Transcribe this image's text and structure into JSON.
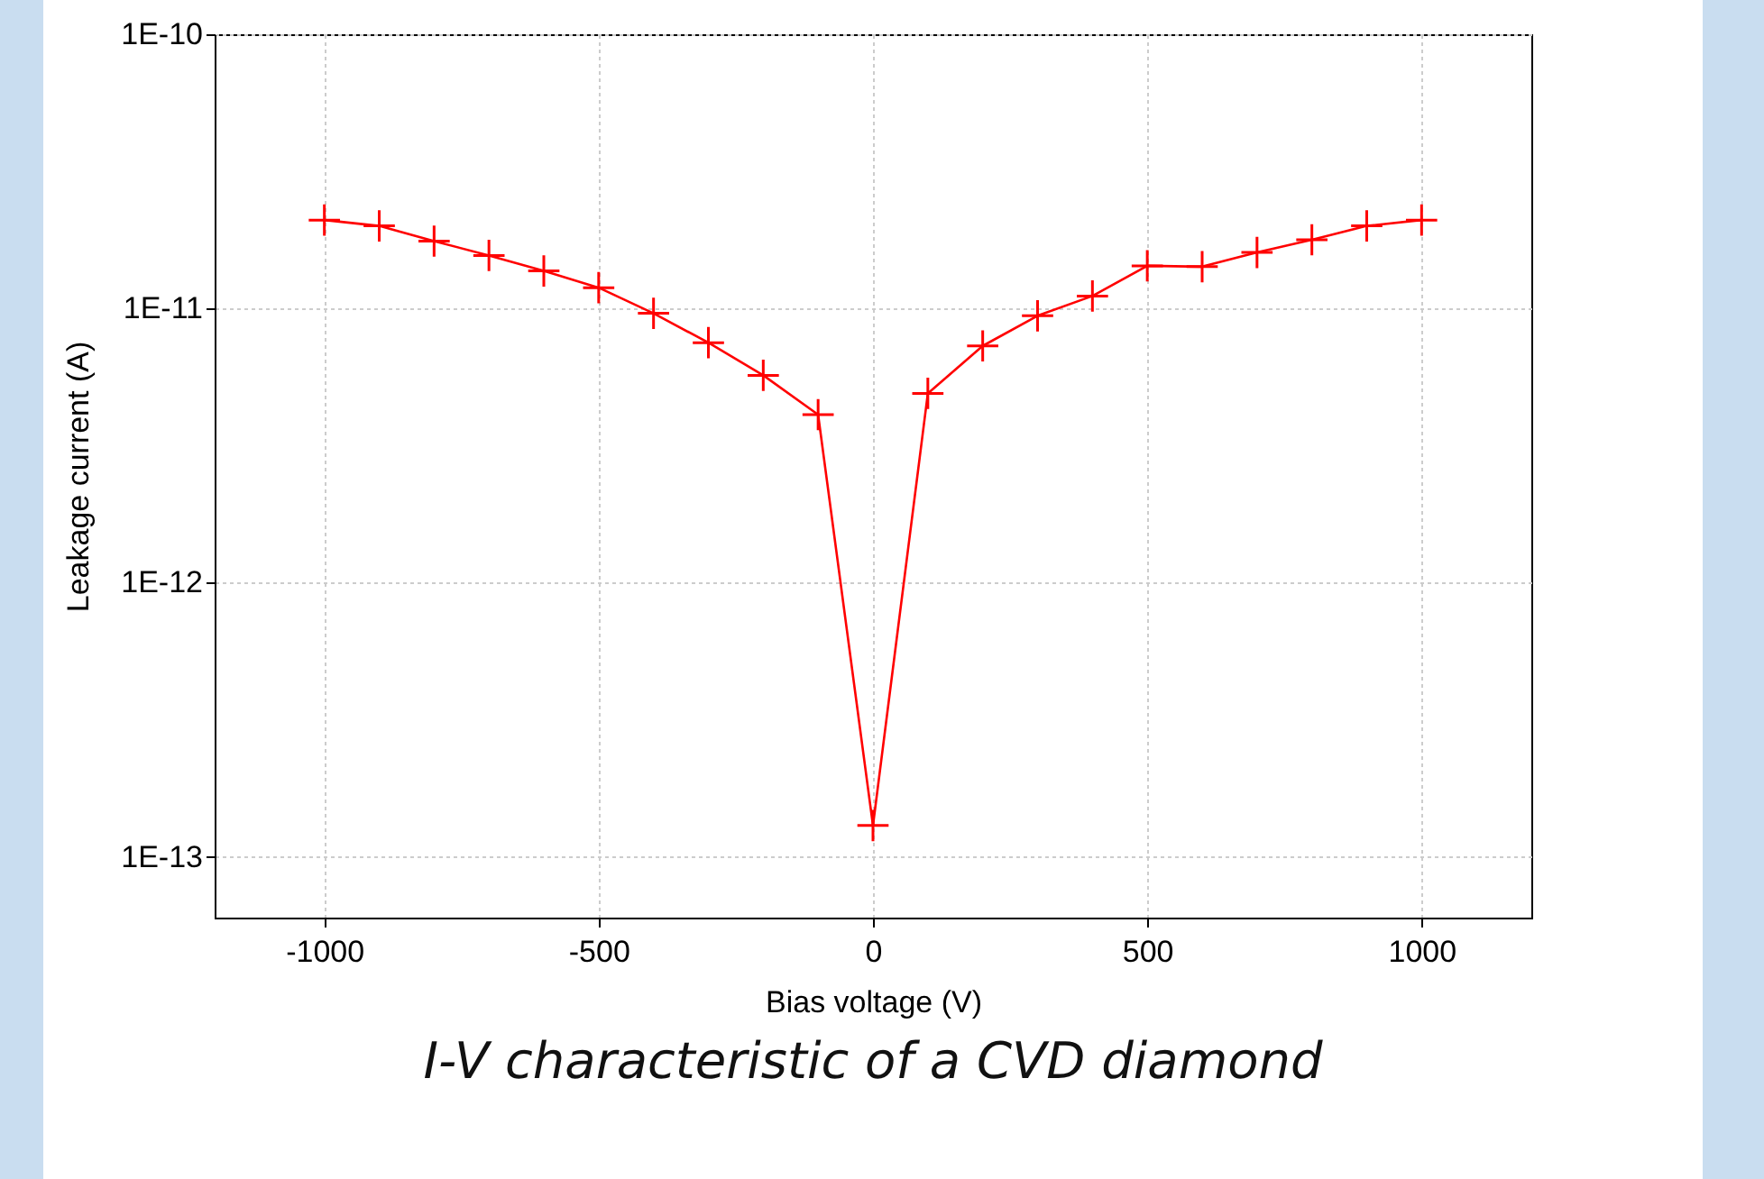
{
  "chart_data": {
    "type": "line",
    "title": "I-V characteristic of a CVD diamond",
    "xlabel": "Bias voltage (V)",
    "ylabel": "Leakage current (A)",
    "x": [
      -1000,
      -900,
      -800,
      -700,
      -600,
      -500,
      -400,
      -300,
      -200,
      -100,
      0,
      100,
      200,
      300,
      400,
      500,
      600,
      700,
      800,
      900,
      1000
    ],
    "series": [
      {
        "color": "#ff0000",
        "values": [
          2.1e-11,
          2e-11,
          1.76e-11,
          1.56e-11,
          1.37e-11,
          1.19e-11,
          9.6e-12,
          7.5e-12,
          5.7e-12,
          4.1e-12,
          1.3e-13,
          4.9e-12,
          7.3e-12,
          9.4e-12,
          1.11e-11,
          1.43e-11,
          1.42e-11,
          1.6e-11,
          1.78e-11,
          2e-11,
          2.1e-11
        ]
      }
    ],
    "xlim": [
      -1200,
      1200
    ],
    "xticks": [
      -1000,
      -500,
      0,
      500,
      1000
    ],
    "ylim": [
      6e-14,
      1e-10
    ],
    "yticks": [
      {
        "value": 1e-13,
        "label": "1E-13"
      },
      {
        "value": 1e-12,
        "label": "1E-12"
      },
      {
        "value": 1e-11,
        "label": "1E-11"
      },
      {
        "value": 1e-10,
        "label": "1E-10"
      }
    ],
    "log": "y",
    "grid": true,
    "marker": "cross",
    "line_style": "solid",
    "legend": false
  }
}
